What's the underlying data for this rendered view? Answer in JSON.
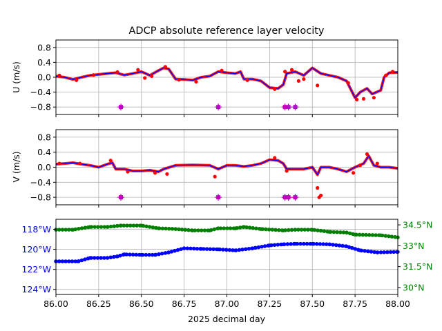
{
  "chart_data": {
    "title": "ADCP absolute reference layer velocity",
    "xlabel": "2025 decimal day",
    "xlim": [
      86.0,
      88.0
    ],
    "xticks": [
      "86.00",
      "86.25",
      "86.50",
      "86.75",
      "87.00",
      "87.25",
      "87.50",
      "87.75",
      "88.00"
    ],
    "xtick_values": [
      86.0,
      86.25,
      86.5,
      86.75,
      87.0,
      87.25,
      87.5,
      87.75,
      88.0
    ],
    "grid": true,
    "colors": {
      "raw": "#ff0000",
      "smooth": "#0000ff",
      "flag": "#c000c0",
      "lon": "#0000ff",
      "lat": "#008000"
    },
    "panels": [
      {
        "type": "line+scatter",
        "ylabel": "U (m/s)",
        "ylim": [
          -1.0,
          1.0
        ],
        "yticks": [
          "0.8",
          "0.4",
          "0.0",
          "−0.4",
          "−0.8"
        ],
        "ytick_values": [
          0.8,
          0.4,
          0.0,
          -0.4,
          -0.8
        ],
        "series": [
          {
            "kind": "line",
            "points": [
              [
                86.0,
                0.03
              ],
              [
                86.05,
                0.0
              ],
              [
                86.1,
                -0.06
              ],
              [
                86.15,
                0.0
              ],
              [
                86.2,
                0.05
              ],
              [
                86.3,
                0.1
              ],
              [
                86.35,
                0.12
              ],
              [
                86.4,
                0.06
              ],
              [
                86.45,
                0.1
              ],
              [
                86.5,
                0.15
              ],
              [
                86.55,
                0.05
              ],
              [
                86.6,
                0.18
              ],
              [
                86.63,
                0.25
              ],
              [
                86.66,
                0.22
              ],
              [
                86.7,
                -0.05
              ],
              [
                86.75,
                -0.06
              ],
              [
                86.8,
                -0.08
              ],
              [
                86.85,
                0.0
              ],
              [
                86.9,
                0.03
              ],
              [
                86.95,
                0.15
              ],
              [
                87.0,
                0.12
              ],
              [
                87.05,
                0.1
              ],
              [
                87.08,
                0.15
              ],
              [
                87.1,
                -0.05
              ],
              [
                87.15,
                -0.05
              ],
              [
                87.2,
                -0.1
              ],
              [
                87.25,
                -0.28
              ],
              [
                87.3,
                -0.3
              ],
              [
                87.33,
                -0.2
              ],
              [
                87.35,
                0.1
              ],
              [
                87.4,
                0.15
              ],
              [
                87.45,
                0.05
              ],
              [
                87.5,
                0.25
              ],
              [
                87.55,
                0.1
              ],
              [
                87.6,
                0.05
              ],
              [
                87.65,
                0.0
              ],
              [
                87.7,
                -0.1
              ],
              [
                87.75,
                -0.55
              ],
              [
                87.78,
                -0.4
              ],
              [
                87.82,
                -0.3
              ],
              [
                87.85,
                -0.45
              ],
              [
                87.9,
                -0.35
              ],
              [
                87.92,
                0.0
              ],
              [
                87.95,
                0.12
              ],
              [
                88.0,
                0.13
              ]
            ]
          },
          {
            "kind": "scatter",
            "points": [
              [
                86.02,
                0.05
              ],
              [
                86.12,
                -0.08
              ],
              [
                86.22,
                0.06
              ],
              [
                86.36,
                0.14
              ],
              [
                86.48,
                0.2
              ],
              [
                86.52,
                -0.02
              ],
              [
                86.56,
                0.03
              ],
              [
                86.64,
                0.28
              ],
              [
                86.72,
                -0.07
              ],
              [
                86.82,
                -0.12
              ],
              [
                86.97,
                0.18
              ],
              [
                87.12,
                -0.08
              ],
              [
                87.28,
                -0.32
              ],
              [
                87.34,
                0.15
              ],
              [
                87.38,
                0.2
              ],
              [
                87.42,
                -0.1
              ],
              [
                87.45,
                -0.05
              ],
              [
                87.53,
                -0.22
              ],
              [
                87.71,
                -0.15
              ],
              [
                87.76,
                -0.6
              ],
              [
                87.8,
                -0.58
              ],
              [
                87.86,
                -0.55
              ],
              [
                87.93,
                0.05
              ],
              [
                87.97,
                0.15
              ]
            ]
          },
          {
            "kind": "flag",
            "points": [
              [
                86.38,
                -0.8
              ],
              [
                86.95,
                -0.8
              ],
              [
                87.34,
                -0.8
              ],
              [
                87.36,
                -0.8
              ],
              [
                87.4,
                -0.8
              ]
            ]
          }
        ]
      },
      {
        "type": "line+scatter",
        "ylabel": "V (m/s)",
        "ylim": [
          -1.0,
          1.0
        ],
        "yticks": [
          "0.8",
          "0.4",
          "0.0",
          "−0.4",
          "−0.8"
        ],
        "ytick_values": [
          0.8,
          0.4,
          0.0,
          -0.4,
          -0.8
        ],
        "series": [
          {
            "kind": "line",
            "points": [
              [
                86.0,
                0.08
              ],
              [
                86.05,
                0.1
              ],
              [
                86.1,
                0.12
              ],
              [
                86.15,
                0.08
              ],
              [
                86.2,
                0.05
              ],
              [
                86.25,
                0.0
              ],
              [
                86.3,
                0.08
              ],
              [
                86.33,
                0.12
              ],
              [
                86.35,
                -0.05
              ],
              [
                86.4,
                -0.05
              ],
              [
                86.45,
                -0.1
              ],
              [
                86.5,
                -0.1
              ],
              [
                86.55,
                -0.08
              ],
              [
                86.6,
                -0.12
              ],
              [
                86.63,
                -0.05
              ],
              [
                86.7,
                0.05
              ],
              [
                86.8,
                0.06
              ],
              [
                86.9,
                0.05
              ],
              [
                86.95,
                -0.05
              ],
              [
                87.0,
                0.05
              ],
              [
                87.05,
                0.05
              ],
              [
                87.1,
                0.02
              ],
              [
                87.15,
                0.05
              ],
              [
                87.2,
                0.1
              ],
              [
                87.25,
                0.2
              ],
              [
                87.3,
                0.18
              ],
              [
                87.33,
                0.1
              ],
              [
                87.35,
                -0.05
              ],
              [
                87.4,
                -0.05
              ],
              [
                87.45,
                -0.05
              ],
              [
                87.5,
                0.0
              ],
              [
                87.53,
                -0.2
              ],
              [
                87.55,
                0.0
              ],
              [
                87.6,
                0.0
              ],
              [
                87.65,
                -0.05
              ],
              [
                87.7,
                -0.12
              ],
              [
                87.75,
                0.0
              ],
              [
                87.8,
                0.1
              ],
              [
                87.83,
                0.3
              ],
              [
                87.86,
                0.05
              ],
              [
                87.9,
                0.0
              ],
              [
                87.95,
                0.0
              ],
              [
                88.0,
                -0.03
              ]
            ]
          },
          {
            "kind": "scatter",
            "points": [
              [
                86.02,
                0.1
              ],
              [
                86.14,
                0.1
              ],
              [
                86.32,
                0.18
              ],
              [
                86.42,
                -0.12
              ],
              [
                86.58,
                -0.15
              ],
              [
                86.65,
                -0.18
              ],
              [
                86.93,
                -0.25
              ],
              [
                87.28,
                0.25
              ],
              [
                87.35,
                -0.1
              ],
              [
                87.53,
                -0.55
              ],
              [
                87.54,
                -0.8
              ],
              [
                87.55,
                -0.75
              ],
              [
                87.74,
                -0.15
              ],
              [
                87.78,
                0.05
              ],
              [
                87.82,
                0.35
              ],
              [
                87.88,
                0.1
              ]
            ]
          },
          {
            "kind": "flag",
            "points": [
              [
                86.38,
                -0.8
              ],
              [
                86.95,
                -0.8
              ],
              [
                87.34,
                -0.8
              ],
              [
                87.36,
                -0.8
              ],
              [
                87.4,
                -0.8
              ]
            ]
          }
        ]
      },
      {
        "type": "scatter",
        "ylabel": "",
        "ylim_left": [
          -124.5,
          -117.0
        ],
        "yticks_left": [
          "118°W",
          "120°W",
          "122°W",
          "124°W"
        ],
        "ytick_values_left": [
          -118,
          -120,
          -122,
          -124
        ],
        "ylim_right": [
          29.5,
          34.9
        ],
        "yticks_right": [
          "34.5°N",
          "33°N",
          "31.5°N",
          "30°N"
        ],
        "ytick_values_right": [
          34.5,
          33.0,
          31.5,
          30.0
        ],
        "series": [
          {
            "kind": "lon",
            "axis": "left",
            "points": [
              [
                86.0,
                -121.2
              ],
              [
                86.13,
                -121.2
              ],
              [
                86.2,
                -120.85
              ],
              [
                86.3,
                -120.85
              ],
              [
                86.36,
                -120.7
              ],
              [
                86.4,
                -120.5
              ],
              [
                86.5,
                -120.55
              ],
              [
                86.58,
                -120.55
              ],
              [
                86.66,
                -120.3
              ],
              [
                86.75,
                -119.9
              ],
              [
                86.85,
                -119.95
              ],
              [
                86.95,
                -120.0
              ],
              [
                87.05,
                -120.1
              ],
              [
                87.15,
                -119.9
              ],
              [
                87.25,
                -119.6
              ],
              [
                87.33,
                -119.5
              ],
              [
                87.4,
                -119.45
              ],
              [
                87.5,
                -119.45
              ],
              [
                87.6,
                -119.5
              ],
              [
                87.7,
                -119.7
              ],
              [
                87.78,
                -120.1
              ],
              [
                87.88,
                -120.3
              ],
              [
                88.0,
                -120.25
              ]
            ]
          },
          {
            "kind": "lat",
            "axis": "right",
            "points": [
              [
                86.0,
                34.15
              ],
              [
                86.1,
                34.15
              ],
              [
                86.2,
                34.35
              ],
              [
                86.3,
                34.35
              ],
              [
                86.38,
                34.45
              ],
              [
                86.5,
                34.45
              ],
              [
                86.6,
                34.25
              ],
              [
                86.7,
                34.2
              ],
              [
                86.8,
                34.1
              ],
              [
                86.9,
                34.1
              ],
              [
                86.95,
                34.25
              ],
              [
                87.05,
                34.25
              ],
              [
                87.1,
                34.35
              ],
              [
                87.2,
                34.2
              ],
              [
                87.33,
                34.1
              ],
              [
                87.4,
                34.15
              ],
              [
                87.5,
                34.15
              ],
              [
                87.6,
                34.0
              ],
              [
                87.7,
                33.95
              ],
              [
                87.75,
                33.8
              ],
              [
                87.9,
                33.75
              ],
              [
                88.0,
                33.6
              ]
            ]
          }
        ]
      }
    ]
  }
}
